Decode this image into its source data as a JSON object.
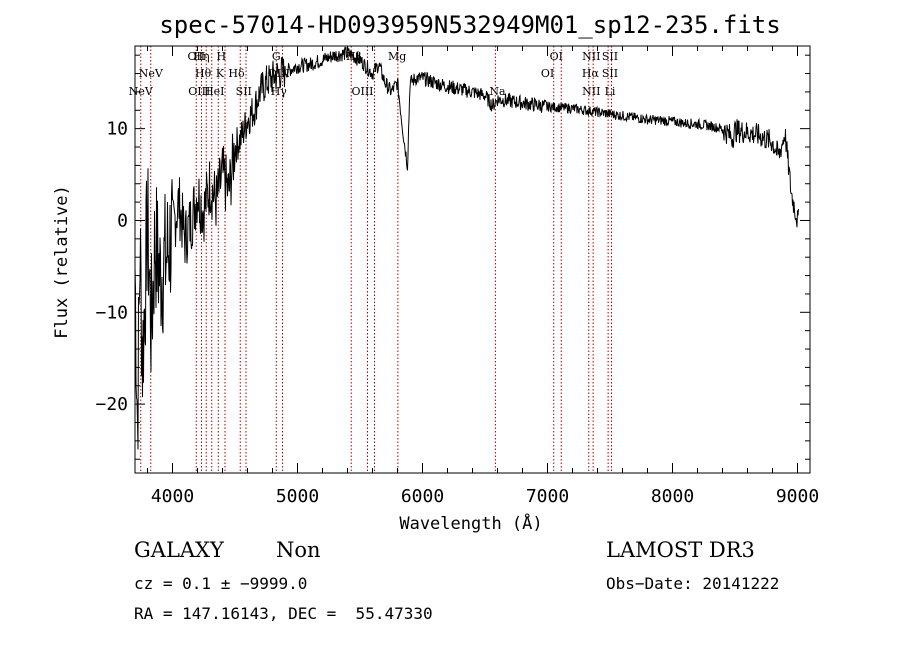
{
  "chart_data": {
    "type": "line",
    "title": "spec-57014-HD093959N532949M01_sp12-235.fits",
    "xlabel": "Wavelength (Å)",
    "ylabel": "Flux (relative)",
    "xlim": [
      3700,
      9100
    ],
    "ylim": [
      -27.5,
      19
    ],
    "xticks": [
      4000,
      5000,
      6000,
      7000,
      8000,
      9000
    ],
    "yticks": [
      -20,
      -10,
      0,
      10
    ],
    "ytick_labels": [
      "−20",
      "−10",
      "0",
      "10"
    ],
    "series": [
      {
        "name": "spectrum",
        "x": [
          3700,
          3720,
          3740,
          3760,
          3780,
          3800,
          3830,
          3860,
          3900,
          3950,
          4000,
          4050,
          4100,
          4150,
          4200,
          4250,
          4300,
          4350,
          4400,
          4450,
          4500,
          4550,
          4600,
          4650,
          4700,
          4750,
          4800,
          4850,
          4900,
          4950,
          5000,
          5100,
          5200,
          5300,
          5400,
          5500,
          5600,
          5650,
          5700,
          5750,
          5800,
          5850,
          5880,
          5900,
          5950,
          6000,
          6100,
          6200,
          6300,
          6400,
          6500,
          6560,
          6600,
          6700,
          6800,
          6900,
          7000,
          7100,
          7200,
          7300,
          7400,
          7500,
          7600,
          7700,
          7800,
          7900,
          8000,
          8100,
          8200,
          8300,
          8400,
          8480,
          8500,
          8600,
          8700,
          8800,
          8850,
          8900,
          8950,
          9000
        ],
        "y": [
          -5,
          -22,
          -3,
          -15,
          -8,
          0,
          -12,
          -2,
          -6,
          -4,
          -1,
          2,
          -2,
          0,
          3,
          1,
          4,
          2,
          5,
          3,
          8,
          9,
          11,
          12,
          14,
          15,
          15.5,
          16,
          16.2,
          16.5,
          16.8,
          17,
          17.5,
          18,
          18.2,
          17.5,
          16,
          17,
          15,
          14,
          15,
          9,
          6,
          15,
          15.5,
          15.5,
          15,
          14.6,
          14.3,
          14,
          13.6,
          12.5,
          13.2,
          13,
          12.8,
          12.6,
          12.4,
          12.3,
          12.2,
          12,
          11.8,
          11.6,
          11.4,
          11.2,
          11.0,
          10.9,
          10.8,
          10.6,
          10.5,
          10.3,
          10.0,
          9.0,
          9.8,
          9.6,
          9.2,
          8.5,
          7.0,
          9.5,
          3.0,
          0.0
        ]
      }
    ],
    "lines": [
      {
        "label": "NeV",
        "x": 3746,
        "row": 3
      },
      {
        "label": "NeV",
        "x": 3826,
        "row": 2
      },
      {
        "label": "OII",
        "x": 4190,
        "row": 1
      },
      {
        "label": "Hη",
        "x": 4232,
        "row": 1
      },
      {
        "label": "Hθ",
        "x": 4245,
        "row": 2
      },
      {
        "label": "OIII",
        "x": 4214,
        "row": 3
      },
      {
        "label": "H",
        "x": 4390,
        "row": 1
      },
      {
        "label": "HeI",
        "x": 4334,
        "row": 3
      },
      {
        "label": "K",
        "x": 4380,
        "row": 2
      },
      {
        "label": "Hδ",
        "x": 4512,
        "row": 2
      },
      {
        "label": "SII",
        "x": 4570,
        "row": 3
      },
      {
        "label": "G",
        "x": 4830,
        "row": 1
      },
      {
        "label": "OIII",
        "x": 4850,
        "row": 2
      },
      {
        "label": "Hγ",
        "x": 4850,
        "row": 3
      },
      {
        "label": "Hβ",
        "x": 5450,
        "row": 1
      },
      {
        "label": "OIII",
        "x": 5520,
        "row": 3
      },
      {
        "label": "Mg",
        "x": 5797,
        "row": 1
      },
      {
        "label": "Na",
        "x": 6600,
        "row": 3
      },
      {
        "label": "OI",
        "x": 7070,
        "row": 1
      },
      {
        "label": "OI",
        "x": 7000,
        "row": 2
      },
      {
        "label": "NII",
        "x": 7350,
        "row": 1
      },
      {
        "label": "Hα",
        "x": 7343,
        "row": 2
      },
      {
        "label": "NII",
        "x": 7350,
        "row": 3
      },
      {
        "label": "SII",
        "x": 7500,
        "row": 1
      },
      {
        "label": "SII",
        "x": 7500,
        "row": 2
      },
      {
        "label": "Li",
        "x": 7500,
        "row": 3
      }
    ],
    "line_marks": [
      3746,
      3826,
      4190,
      4232,
      4270,
      4314,
      4366,
      4420,
      4542,
      4588,
      4830,
      4880,
      5430,
      5560,
      5616,
      5803,
      6583,
      7050,
      7110,
      7330,
      7365,
      7485,
      7512
    ]
  },
  "info": {
    "object_class": "GALAXY",
    "subclass": "Non",
    "survey": "LAMOST DR3",
    "cz": "cz = 0.1 ± −9999.0",
    "obs_date": "Obs−Date: 20141222",
    "coords": "RA = 147.16143, DEC =  55.47330"
  }
}
